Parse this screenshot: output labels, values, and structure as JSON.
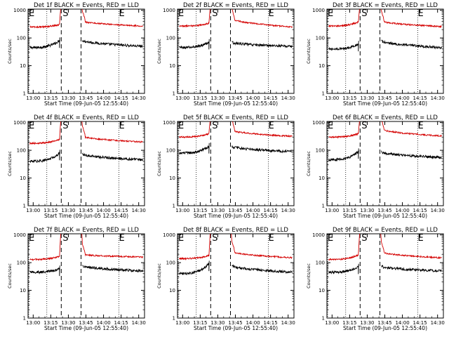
{
  "chart_data": [
    {
      "type": "line",
      "title": "Det 1f BLACK = Events, RED = LLD",
      "xlabel": "Start Time (09-Jun-05 12:55:40)",
      "ylabel": "Counts/sec",
      "x_ticks": [
        "13:00",
        "13:15",
        "13:30",
        "13:45",
        "14:00",
        "14:15",
        "14:30"
      ],
      "y_ticks": [
        "1",
        "10",
        "100",
        "1000"
      ],
      "ylim": [
        1,
        1100
      ],
      "y_scale": "log",
      "markers": [
        "E",
        "S",
        "E"
      ],
      "series": [
        {
          "color": "#000000",
          "pre_level": 45,
          "pre_end": 80,
          "post_start": 85,
          "post_end": 50
        },
        {
          "color": "#d40000",
          "pre_level": 250,
          "pre_end": 300,
          "post_start": 420,
          "post_end": 270
        }
      ]
    },
    {
      "type": "line",
      "title": "Det 2f BLACK = Events, RED = LLD",
      "xlabel": "Start Time (09-Jun-05 12:55:40)",
      "ylabel": "Counts/sec",
      "x_ticks": [
        "13:00",
        "13:15",
        "13:30",
        "13:45",
        "14:00",
        "14:15",
        "14:30"
      ],
      "y_ticks": [
        "1",
        "10",
        "100",
        "1000"
      ],
      "ylim": [
        1,
        1100
      ],
      "y_scale": "log",
      "markers": [
        "E",
        "S",
        "E"
      ],
      "series": [
        {
          "color": "#000000",
          "pre_level": 45,
          "pre_end": 70,
          "post_start": 70,
          "post_end": 50
        },
        {
          "color": "#d40000",
          "pre_level": 270,
          "pre_end": 340,
          "post_start": 520,
          "post_end": 250
        }
      ]
    },
    {
      "type": "line",
      "title": "Det 3f BLACK = Events, RED = LLD",
      "xlabel": "Start Time (09-Jun-05 12:55:40)",
      "ylabel": "Counts/sec",
      "x_ticks": [
        "13:00",
        "13:15",
        "13:30",
        "13:45",
        "14:00",
        "14:15",
        "14:30"
      ],
      "y_ticks": [
        "1",
        "10",
        "100",
        "1000"
      ],
      "ylim": [
        1,
        1100
      ],
      "y_scale": "log",
      "markers": [
        "E",
        "S",
        "E"
      ],
      "series": [
        {
          "color": "#000000",
          "pre_level": 40,
          "pre_end": 60,
          "post_start": 80,
          "post_end": 45
        },
        {
          "color": "#d40000",
          "pre_level": 270,
          "pre_end": 380,
          "post_start": 420,
          "post_end": 260
        }
      ]
    },
    {
      "type": "line",
      "title": "Det 4f BLACK = Events, RED = LLD",
      "xlabel": "Start Time (09-Jun-05 12:55:40)",
      "ylabel": "Counts/sec",
      "x_ticks": [
        "13:00",
        "13:15",
        "13:30",
        "13:45",
        "14:00",
        "14:15",
        "14:30"
      ],
      "y_ticks": [
        "1",
        "10",
        "100",
        "1000"
      ],
      "ylim": [
        1,
        1100
      ],
      "y_scale": "log",
      "markers": [
        "E",
        "S",
        "E"
      ],
      "series": [
        {
          "color": "#000000",
          "pre_level": 40,
          "pre_end": 80,
          "post_start": 75,
          "post_end": 45
        },
        {
          "color": "#d40000",
          "pre_level": 180,
          "pre_end": 250,
          "post_start": 330,
          "post_end": 200
        }
      ]
    },
    {
      "type": "line",
      "title": "Det 5f BLACK = Events, RED = LLD",
      "xlabel": "Start Time (09-Jun-05 12:55:40)",
      "ylabel": "Counts/sec",
      "x_ticks": [
        "13:00",
        "13:15",
        "13:30",
        "13:45",
        "14:00",
        "14:15",
        "14:30"
      ],
      "y_ticks": [
        "1",
        "10",
        "100",
        "1000"
      ],
      "ylim": [
        1,
        1100
      ],
      "y_scale": "log",
      "markers": [
        "E",
        "S",
        "E"
      ],
      "series": [
        {
          "color": "#000000",
          "pre_level": 80,
          "pre_end": 140,
          "post_start": 140,
          "post_end": 90
        },
        {
          "color": "#d40000",
          "pre_level": 300,
          "pre_end": 400,
          "post_start": 550,
          "post_end": 320
        }
      ]
    },
    {
      "type": "line",
      "title": "Det 6f BLACK = Events, RED = LLD",
      "xlabel": "Start Time (09-Jun-05 12:55:40)",
      "ylabel": "Counts/sec",
      "x_ticks": [
        "13:00",
        "13:15",
        "13:30",
        "13:45",
        "14:00",
        "14:15",
        "14:30"
      ],
      "y_ticks": [
        "1",
        "10",
        "100",
        "1000"
      ],
      "ylim": [
        1,
        1100
      ],
      "y_scale": "log",
      "markers": [
        "E",
        "S",
        "E"
      ],
      "series": [
        {
          "color": "#000000",
          "pre_level": 45,
          "pre_end": 90,
          "post_start": 90,
          "post_end": 55
        },
        {
          "color": "#d40000",
          "pre_level": 300,
          "pre_end": 400,
          "post_start": 600,
          "post_end": 330
        }
      ]
    },
    {
      "type": "line",
      "title": "Det 7f BLACK = Events, RED = LLD",
      "xlabel": "Start Time (09-Jun-05 12:55:40)",
      "ylabel": "Counts/sec",
      "x_ticks": [
        "13:00",
        "13:15",
        "13:30",
        "13:45",
        "14:00",
        "14:15",
        "14:30"
      ],
      "y_ticks": [
        "1",
        "10",
        "100",
        "1000"
      ],
      "ylim": [
        1,
        1100
      ],
      "y_scale": "log",
      "markers": [
        "E",
        "S",
        "E"
      ],
      "series": [
        {
          "color": "#000000",
          "pre_level": 45,
          "pre_end": 60,
          "post_start": 80,
          "post_end": 50
        },
        {
          "color": "#d40000",
          "pre_level": 130,
          "pre_end": 170,
          "post_start": 200,
          "post_end": 160
        }
      ]
    },
    {
      "type": "line",
      "title": "Det 8f BLACK = Events, RED = LLD",
      "xlabel": "Start Time (09-Jun-05 12:55:40)",
      "ylabel": "Counts/sec",
      "x_ticks": [
        "13:00",
        "13:15",
        "13:30",
        "13:45",
        "14:00",
        "14:15",
        "14:30"
      ],
      "y_ticks": [
        "1",
        "10",
        "100",
        "1000"
      ],
      "ylim": [
        1,
        1100
      ],
      "y_scale": "log",
      "markers": [
        "E",
        "S",
        "E"
      ],
      "series": [
        {
          "color": "#000000",
          "pre_level": 40,
          "pre_end": 90,
          "post_start": 80,
          "post_end": 45
        },
        {
          "color": "#d40000",
          "pre_level": 140,
          "pre_end": 180,
          "post_start": 260,
          "post_end": 150
        }
      ]
    },
    {
      "type": "line",
      "title": "Det 9f BLACK = Events, RED = LLD",
      "xlabel": "Start Time (09-Jun-05 12:55:40)",
      "ylabel": "Counts/sec",
      "x_ticks": [
        "13:00",
        "13:15",
        "13:30",
        "13:45",
        "14:00",
        "14:15",
        "14:30"
      ],
      "y_ticks": [
        "1",
        "10",
        "100",
        "1000"
      ],
      "ylim": [
        1,
        1100
      ],
      "y_scale": "log",
      "markers": [
        "E",
        "S",
        "E"
      ],
      "series": [
        {
          "color": "#000000",
          "pre_level": 45,
          "pre_end": 70,
          "post_start": 75,
          "post_end": 50
        },
        {
          "color": "#d40000",
          "pre_level": 130,
          "pre_end": 190,
          "post_start": 250,
          "post_end": 150
        }
      ]
    }
  ]
}
